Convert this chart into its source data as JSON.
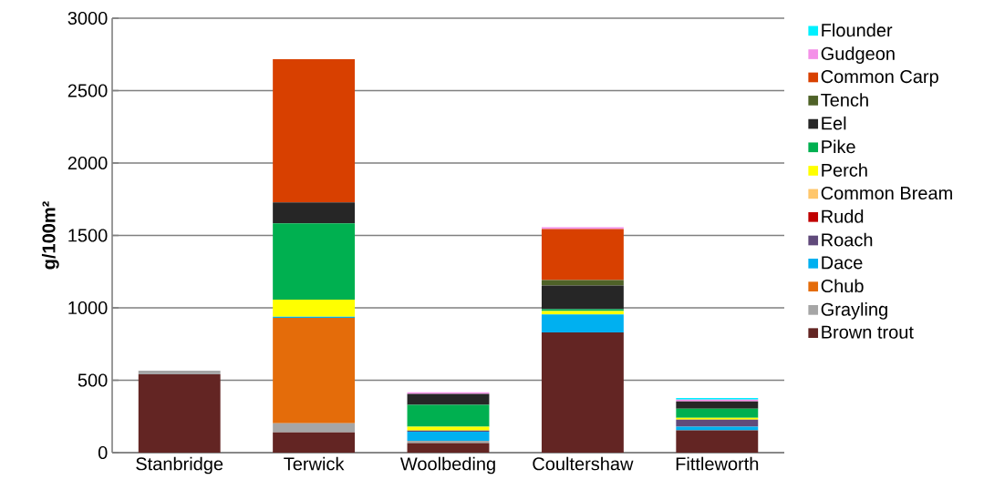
{
  "chart_data": {
    "type": "bar",
    "stacked": true,
    "ylabel": "**g/100m²**",
    "categories": [
      "Stanbridge",
      "Terwick",
      "Woolbeding",
      "Coultershaw",
      "Fittleworth"
    ],
    "ylim": [
      0,
      3000
    ],
    "yticks": [
      0,
      500,
      1000,
      1500,
      2000,
      2500,
      3000
    ],
    "grid": "y",
    "legend": "right",
    "series": [
      {
        "name": "Brown trout",
        "color": "#632523",
        "values": [
          541,
          140,
          66,
          830,
          154
        ]
      },
      {
        "name": "Grayling",
        "color": "#a6a6a6",
        "values": [
          25,
          63,
          16,
          0,
          0
        ]
      },
      {
        "name": "Chub",
        "color": "#e46c0a",
        "values": [
          0,
          728,
          0,
          0,
          0
        ]
      },
      {
        "name": "Dace",
        "color": "#00b0f0",
        "values": [
          0,
          7,
          62,
          125,
          25
        ]
      },
      {
        "name": "Roach",
        "color": "#604a7b",
        "values": [
          0,
          0,
          8,
          0,
          49
        ]
      },
      {
        "name": "Rudd",
        "color": "#c00000",
        "values": [
          0,
          0,
          0,
          0,
          0
        ]
      },
      {
        "name": "Common Bream",
        "color": "#ffc66a",
        "values": [
          0,
          0,
          0,
          0,
          0
        ]
      },
      {
        "name": "Perch",
        "color": "#ffff00",
        "values": [
          0,
          118,
          27,
          23,
          12
        ]
      },
      {
        "name": "Pike",
        "color": "#00b050",
        "values": [
          0,
          527,
          151,
          13,
          63
        ]
      },
      {
        "name": "Eel",
        "color": "#262626",
        "values": [
          0,
          145,
          75,
          163,
          50
        ]
      },
      {
        "name": "Tench",
        "color": "#4f6228",
        "values": [
          0,
          0,
          0,
          37,
          0
        ]
      },
      {
        "name": "Common Carp",
        "color": "#d84000",
        "values": [
          0,
          989,
          0,
          353,
          0
        ]
      },
      {
        "name": "Gudgeon",
        "color": "#f490e8",
        "values": [
          0,
          0,
          11,
          13,
          13
        ]
      },
      {
        "name": "Flounder",
        "color": "#00f0ff",
        "values": [
          0,
          0,
          0,
          0,
          12
        ]
      }
    ]
  }
}
